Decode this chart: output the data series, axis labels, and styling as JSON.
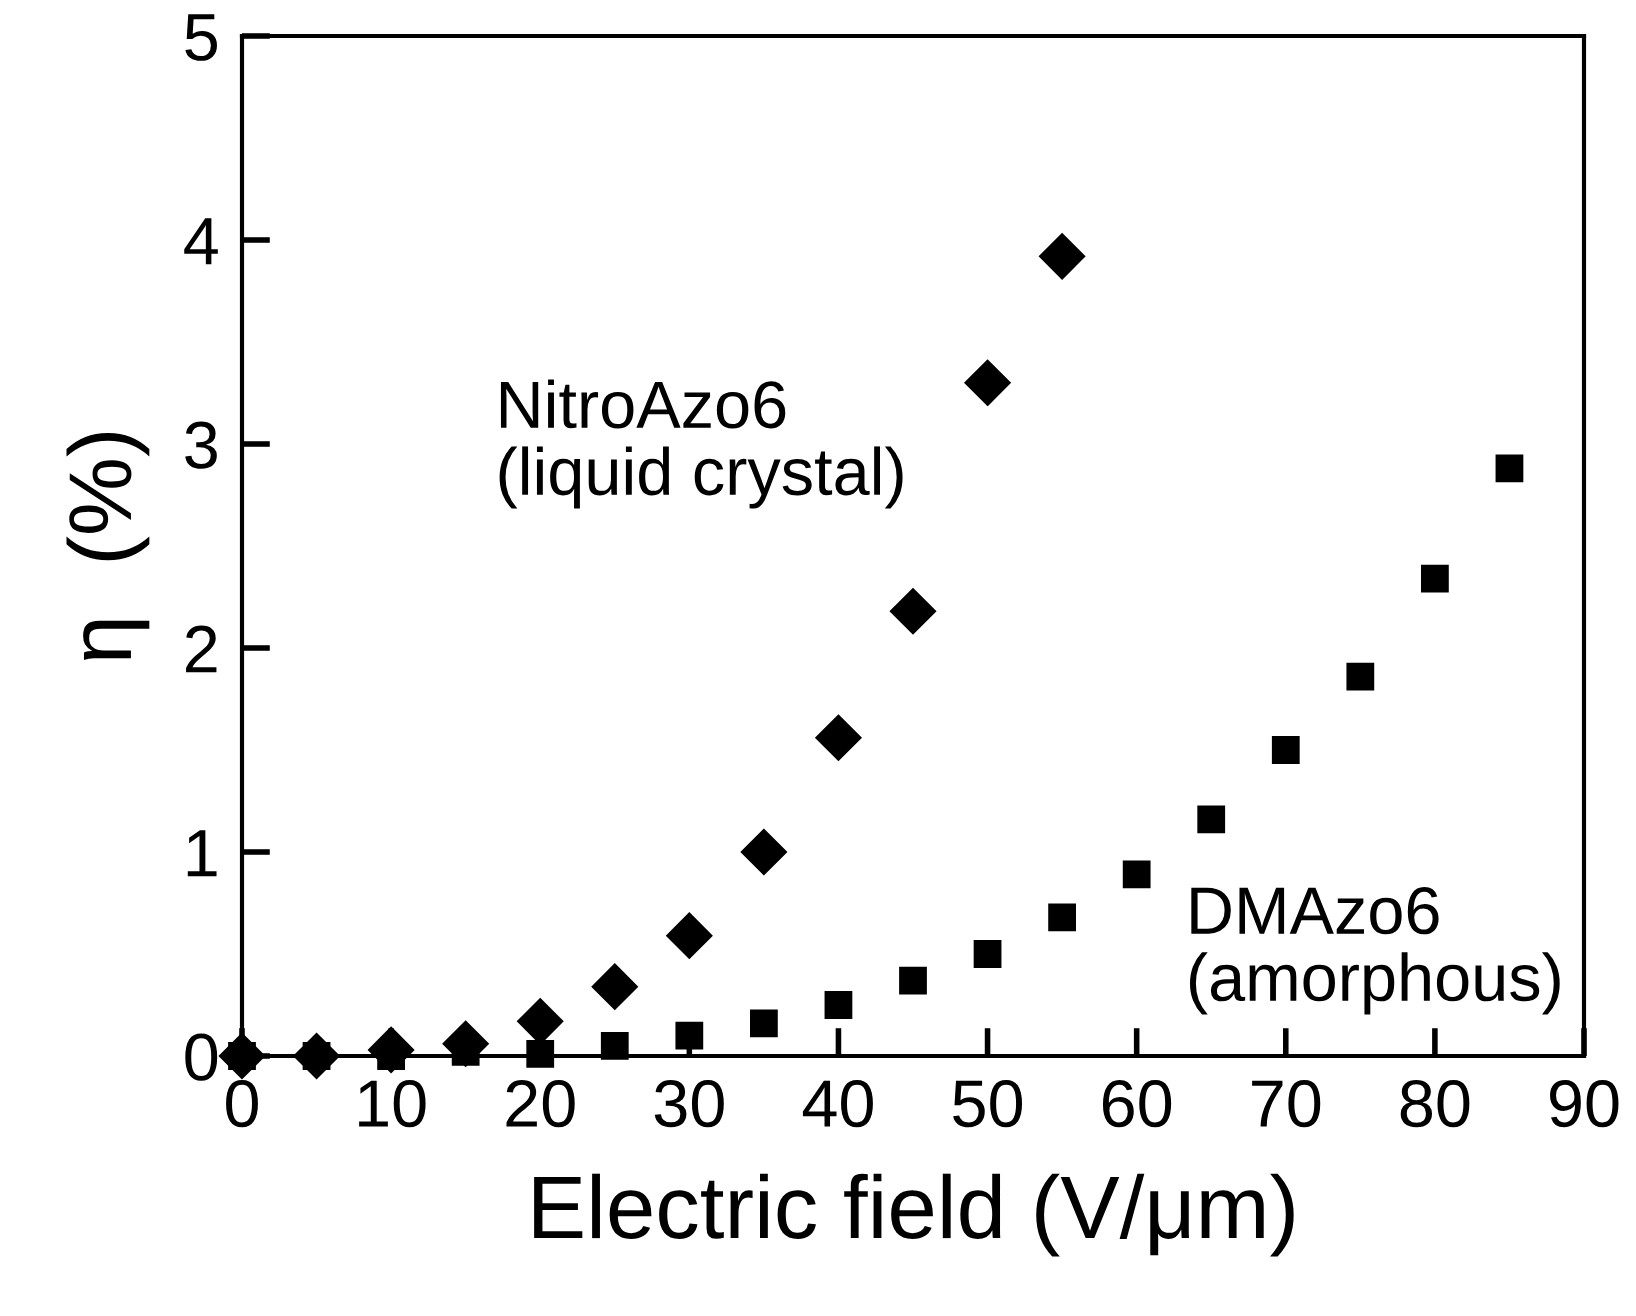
{
  "chart_data": {
    "type": "scatter",
    "xlabel": "Electric field (V/μm)",
    "ylabel": "η  (%)",
    "xlim": [
      0,
      90
    ],
    "ylim": [
      0,
      5
    ],
    "xticks": [
      0,
      10,
      20,
      30,
      40,
      50,
      60,
      70,
      80,
      90
    ],
    "yticks": [
      0,
      1,
      2,
      3,
      4,
      5
    ],
    "grid": false,
    "legend": false,
    "series": [
      {
        "name": "NitroAzo6\n(liquid crystal)",
        "color": "#000000",
        "marker": "diamond",
        "x": [
          0,
          5,
          10,
          15,
          20,
          25,
          30,
          35,
          40,
          45,
          50,
          55
        ],
        "values": [
          0,
          0,
          0.03,
          0.06,
          0.17,
          0.34,
          0.59,
          1.0,
          1.56,
          2.18,
          3.3,
          3.92
        ]
      },
      {
        "name": "DMAzo6\n(amorphous)",
        "color": "#000000",
        "marker": "square",
        "x": [
          0,
          5,
          10,
          15,
          20,
          25,
          30,
          35,
          40,
          45,
          50,
          55,
          60,
          65,
          70,
          75,
          80,
          85
        ],
        "values": [
          0,
          0,
          0,
          0.02,
          0.01,
          0.05,
          0.1,
          0.16,
          0.25,
          0.37,
          0.5,
          0.68,
          0.89,
          1.16,
          1.5,
          1.86,
          2.34,
          2.88
        ]
      }
    ]
  }
}
